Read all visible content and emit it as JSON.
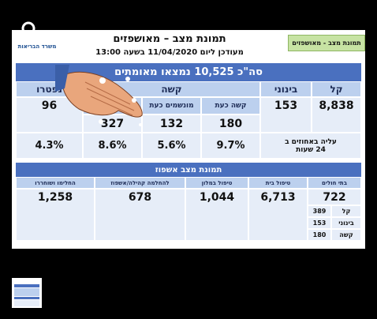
{
  "header": {
    "logo": "משרד הבריאות",
    "title": "תמונת מצב – מאושפזים",
    "subtitle": "מעודכן ליום 11/04/2020 בשעה 13:00",
    "tag": "תמונת מצב - מאושפזים"
  },
  "summary": {
    "banner": "סה\"כ 10,525 נמצאו מאומתים",
    "mild": {
      "label": "קל",
      "value": "8,838"
    },
    "moderate": {
      "label": "בינוני",
      "value": "153"
    },
    "severe": {
      "label": "קשה",
      "columns": [
        {
          "label": "קשה כעת",
          "value": "180",
          "change": "9.7%"
        },
        {
          "label": "מונשמים כעת",
          "value": "132",
          "change": "5.6%"
        },
        {
          "value": "327",
          "change": "8.6%"
        }
      ]
    },
    "deceased": {
      "label": "נפטרו",
      "value": "96",
      "change": "4.3%"
    },
    "change_label": "עליה באחוזים ב 24 שעות"
  },
  "hospitalization": {
    "title": "תמונת מצב אשפוז",
    "columns": [
      {
        "label": "בתי חולים",
        "value": "722"
      },
      {
        "label": "טיפול בית",
        "value": "6,713"
      },
      {
        "label": "טיפול במלון",
        "value": "1,044"
      },
      {
        "label": "להחלמה קהילה/אשפוז",
        "value": "678"
      },
      {
        "label": "החלימו ושוחררו",
        "value": "1,258"
      }
    ],
    "hospital_breakdown": [
      {
        "label": "קל",
        "value": "389"
      },
      {
        "label": "בינוני",
        "value": "153"
      },
      {
        "label": "קשה",
        "value": "180"
      }
    ]
  }
}
